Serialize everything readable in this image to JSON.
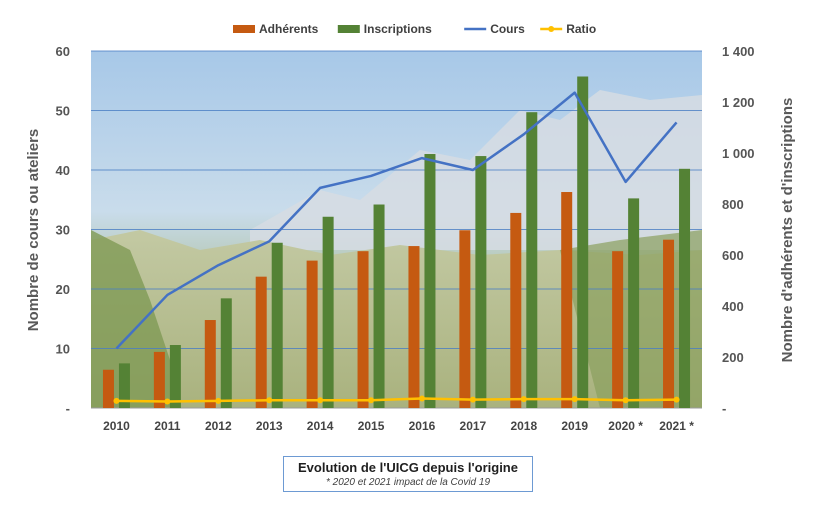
{
  "chart_data": {
    "type": "bar",
    "title": "Evolution de l'UICG depuis l'origine",
    "subtitle": "* 2020 et 2021 impact de la Covid 19",
    "categories": [
      "2010",
      "2011",
      "2012",
      "2013",
      "2014",
      "2015",
      "2016",
      "2017",
      "2018",
      "2019",
      "2020 *",
      "2021 *"
    ],
    "series": [
      {
        "name": "Adhérents",
        "kind": "bar",
        "axis": "right",
        "color": "#c55a11",
        "values": [
          150,
          220,
          345,
          515,
          578,
          615,
          635,
          697,
          765,
          847,
          615,
          660
        ]
      },
      {
        "name": "Inscriptions",
        "kind": "bar",
        "axis": "right",
        "color": "#548235",
        "values": [
          175,
          247,
          430,
          648,
          750,
          798,
          996,
          988,
          1160,
          1300,
          822,
          938
        ]
      },
      {
        "name": "Cours",
        "kind": "line",
        "axis": "left",
        "color": "#4472c4",
        "values": [
          10,
          19,
          24,
          28,
          37,
          39,
          42,
          40,
          46,
          53,
          38,
          48
        ]
      },
      {
        "name": "Ratio",
        "kind": "line",
        "axis": "left",
        "color": "#ffc000",
        "values": [
          1.2,
          1.1,
          1.2,
          1.3,
          1.3,
          1.3,
          1.6,
          1.4,
          1.5,
          1.5,
          1.3,
          1.4
        ]
      }
    ],
    "y_left": {
      "label": "Nombre de cours ou ateliers",
      "min": 0,
      "max": 60,
      "ticks": [
        "-",
        "10",
        "20",
        "30",
        "40",
        "50",
        "60"
      ]
    },
    "y_right": {
      "label": "Nombre d'adhérents et d'inscriptions",
      "min": 0,
      "max": 1400,
      "ticks": [
        "-",
        "200",
        "400",
        "600",
        "800",
        "1 000",
        "1 200",
        "1 400"
      ]
    },
    "grid": true,
    "legend_position": "top",
    "background": "landscape photo"
  }
}
